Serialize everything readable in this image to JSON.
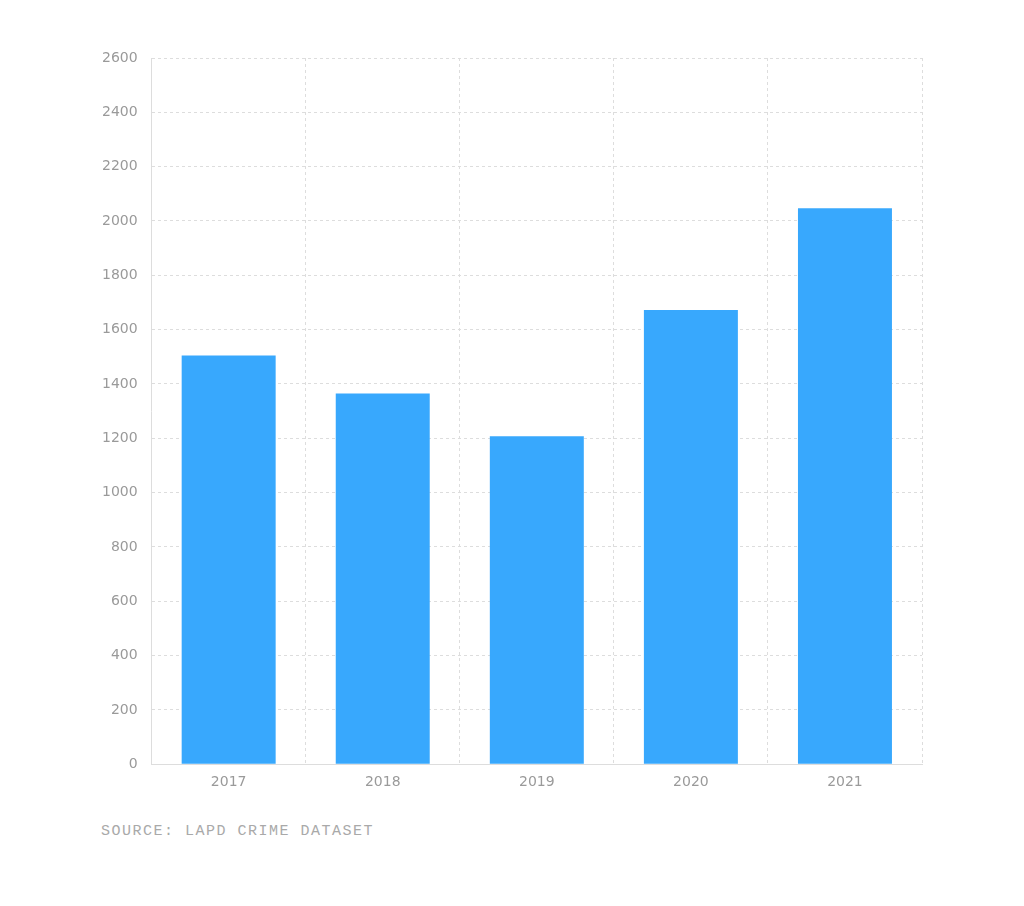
{
  "chart_data": {
    "type": "bar",
    "categories": [
      "2017",
      "2018",
      "2019",
      "2020",
      "2021"
    ],
    "values": [
      1505,
      1365,
      1207,
      1672,
      2047
    ],
    "color": "#38a8fd",
    "ylim": [
      0,
      2600
    ],
    "yticks": [
      0,
      200,
      400,
      600,
      800,
      1000,
      1200,
      1400,
      1600,
      1800,
      2000,
      2200,
      2400,
      2600
    ],
    "grid": true,
    "source": "SOURCE: LAPD CRIME DATASET"
  }
}
